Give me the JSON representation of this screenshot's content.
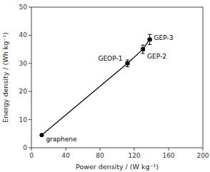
{
  "chart_data": {
    "type": "line",
    "xlabel": "Power density / (W kg⁻¹)",
    "ylabel": "Energy density / (Wh kg⁻¹)",
    "x": [
      12,
      112,
      130,
      138
    ],
    "values": [
      4.5,
      30,
      35,
      38.5
    ],
    "xerr": [
      0,
      2,
      2,
      2
    ],
    "yerr": [
      0,
      1.2,
      1.5,
      1.8
    ],
    "annotations": [
      "graphene",
      "GEOP-1",
      "GEP-2",
      "GEP-3"
    ],
    "xlim": [
      0,
      200
    ],
    "ylim": [
      0,
      50
    ],
    "xticks": [
      0,
      40,
      80,
      120,
      160,
      200
    ],
    "yticks": [
      0,
      10,
      20,
      30,
      40,
      50
    ],
    "marker": "circle",
    "color": "black",
    "grid": false
  }
}
